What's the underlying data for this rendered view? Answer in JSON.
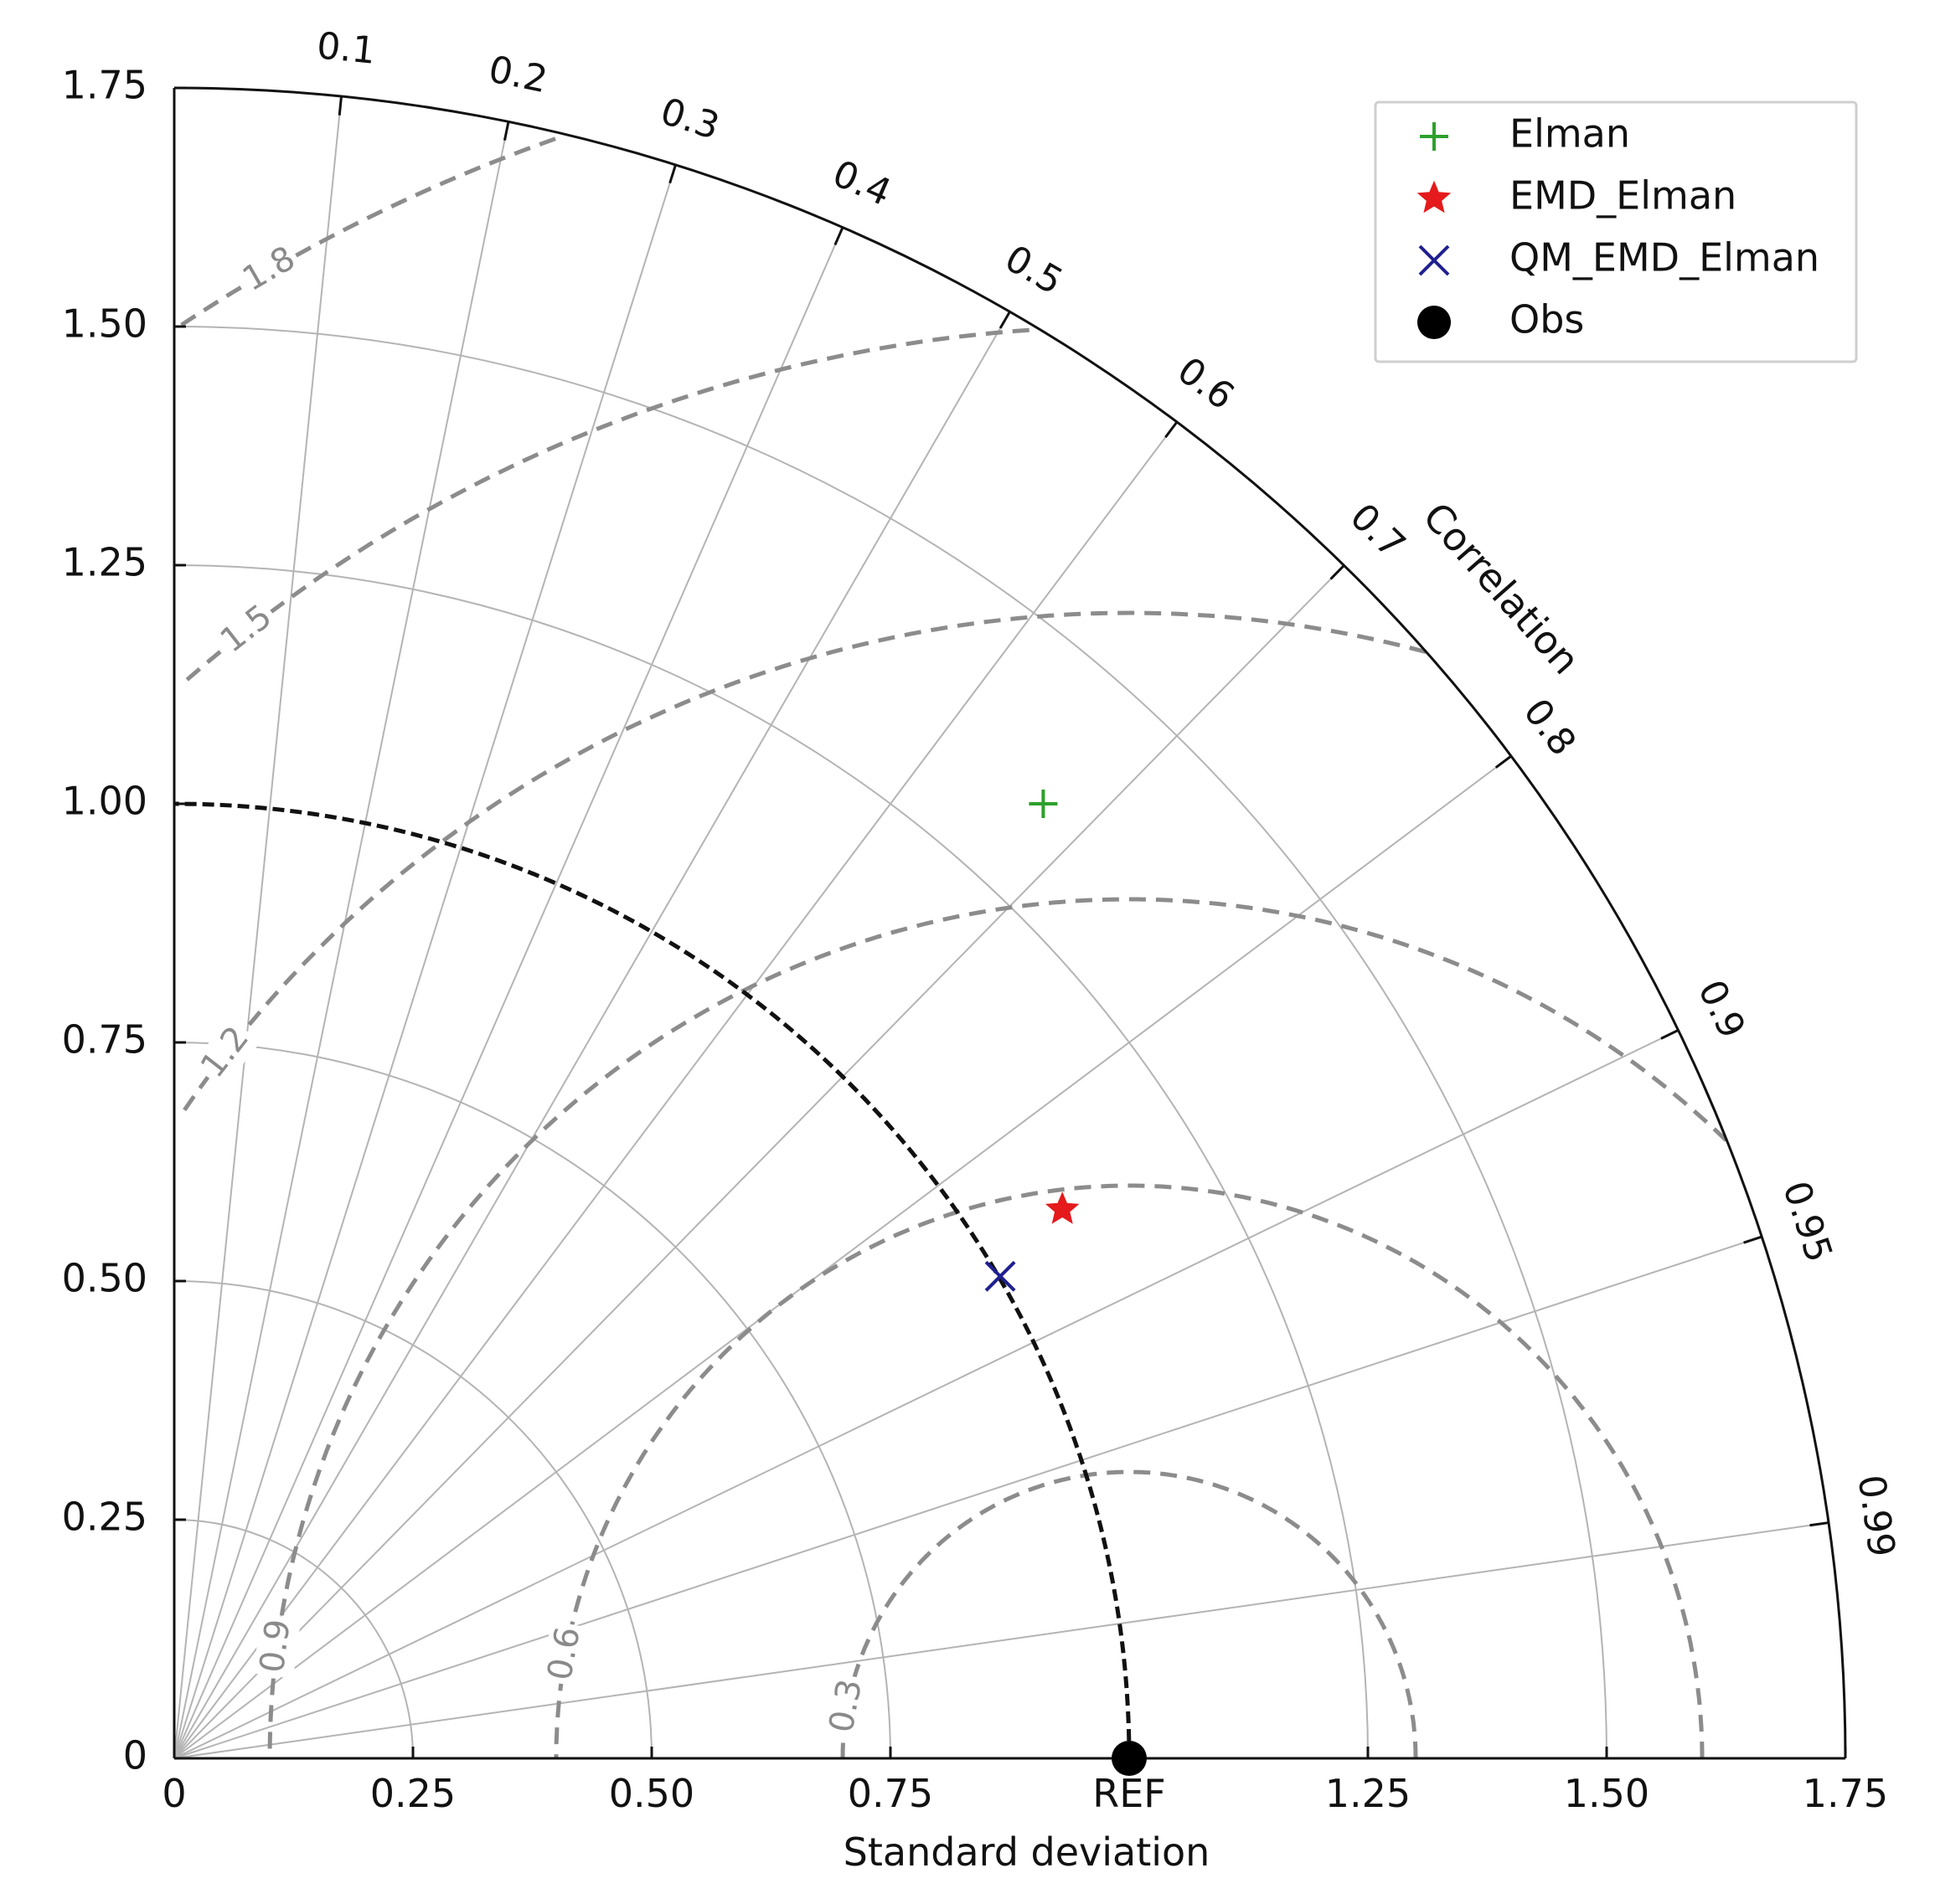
{
  "chart_data": {
    "type": "scatter",
    "subtype": "taylor-diagram",
    "xlabel": "Standard deviation",
    "correlation_label": "Correlation",
    "std_max": 1.75,
    "std_ticks": [
      {
        "value": 0,
        "label": "0"
      },
      {
        "value": 0.25,
        "label": "0.25"
      },
      {
        "value": 0.5,
        "label": "0.50"
      },
      {
        "value": 0.75,
        "label": "0.75"
      },
      {
        "value": 1.0,
        "label": "REF"
      },
      {
        "value": 1.25,
        "label": "1.25"
      },
      {
        "value": 1.5,
        "label": "1.50"
      },
      {
        "value": 1.75,
        "label": "1.75"
      }
    ],
    "y_ticks": [
      {
        "value": 0,
        "label": "0"
      },
      {
        "value": 0.25,
        "label": "0.25"
      },
      {
        "value": 0.5,
        "label": "0.50"
      },
      {
        "value": 0.75,
        "label": "0.75"
      },
      {
        "value": 1.0,
        "label": "1.00"
      },
      {
        "value": 1.25,
        "label": "1.25"
      },
      {
        "value": 1.5,
        "label": "1.50"
      },
      {
        "value": 1.75,
        "label": "1.75"
      }
    ],
    "std_grid_arcs": [
      0.25,
      0.5,
      0.75,
      1.0,
      1.25,
      1.5
    ],
    "correlation_ticks": [
      {
        "value": 0.1,
        "label": "0.1"
      },
      {
        "value": 0.2,
        "label": "0.2"
      },
      {
        "value": 0.3,
        "label": "0.3"
      },
      {
        "value": 0.4,
        "label": "0.4"
      },
      {
        "value": 0.5,
        "label": "0.5"
      },
      {
        "value": 0.6,
        "label": "0.6"
      },
      {
        "value": 0.7,
        "label": "0.7"
      },
      {
        "value": 0.8,
        "label": "0.8"
      },
      {
        "value": 0.9,
        "label": "0.9"
      },
      {
        "value": 0.95,
        "label": "0.95"
      },
      {
        "value": 0.99,
        "label": "0.99"
      }
    ],
    "rms_contours": [
      {
        "value": 0.3,
        "label": "0.3"
      },
      {
        "value": 0.6,
        "label": "0.6"
      },
      {
        "value": 0.9,
        "label": "0.9"
      },
      {
        "value": 1.2,
        "label": "1.2"
      },
      {
        "value": 1.5,
        "label": "1.5"
      },
      {
        "value": 1.8,
        "label": "1.8"
      }
    ],
    "reference": {
      "name": "Obs",
      "std": 1.0,
      "correlation": 1.0,
      "marker": "circle",
      "color": "#000000"
    },
    "series": [
      {
        "name": "Elman",
        "marker": "plus",
        "color": "#2ca02c",
        "x": 0.91,
        "y": 1.0
      },
      {
        "name": "EMD_Elman",
        "marker": "star",
        "color": "#e41a1c",
        "x": 0.93,
        "y": 0.575
      },
      {
        "name": "QM_EMD_Elman",
        "marker": "x",
        "color": "#1f1f8f",
        "x": 0.865,
        "y": 0.505
      }
    ],
    "legend_position": "top-right",
    "legend_entries": [
      "Elman",
      "EMD_Elman",
      "QM_EMD_Elman",
      "Obs"
    ]
  }
}
